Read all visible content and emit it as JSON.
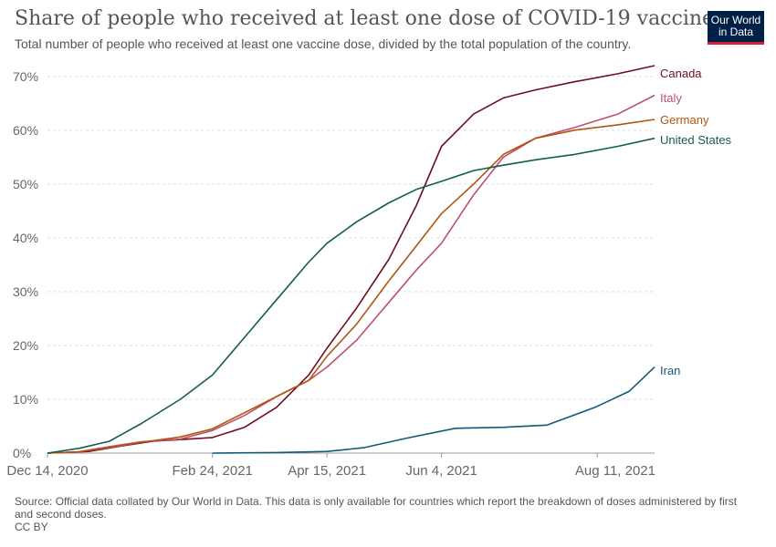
{
  "header": {
    "title": "Share of people who received at least one dose of COVID-19 vaccine",
    "subtitle": "Total number of people who received at least one vaccine dose, divided by the total population of the country."
  },
  "logo": {
    "line1": "Our World",
    "line2": "in Data"
  },
  "footer": {
    "source": "Source: Official data collated by Our World in Data. This data is only available for countries which report the breakdown of doses administered by first and second doses.",
    "license": "CC BY"
  },
  "colors": {
    "Canada": "#6d0f1f",
    "Italy": "#c0506c",
    "Germany": "#b0540f",
    "United States": "#145c52",
    "Iran": "#115a7a"
  },
  "chart_data": {
    "type": "line",
    "title": "Share of people who received at least one dose of COVID-19 vaccine",
    "subtitle": "Total number of people who received at least one vaccine dose, divided by the total population of the country.",
    "xlabel": "",
    "ylabel": "",
    "x_ticks": [
      "2020-12-14",
      "2021-02-24",
      "2021-04-15",
      "2021-06-04",
      "2021-08-11"
    ],
    "x_tick_labels": [
      "Dec 14, 2020",
      "Feb 24, 2021",
      "Apr 15, 2021",
      "Jun 4, 2021",
      "Aug 11, 2021"
    ],
    "xlim": [
      "2020-12-14",
      "2021-09-05"
    ],
    "y_ticks": [
      0,
      10,
      20,
      30,
      40,
      50,
      60,
      70
    ],
    "y_tick_labels": [
      "0%",
      "10%",
      "20%",
      "30%",
      "40%",
      "50%",
      "60%",
      "70%"
    ],
    "ylim": [
      0,
      72
    ],
    "grid": true,
    "legend": "end-of-line labels",
    "series": [
      {
        "name": "Canada",
        "points": [
          [
            "2020-12-14",
            0
          ],
          [
            "2021-01-01",
            0.3
          ],
          [
            "2021-01-15",
            1.3
          ],
          [
            "2021-01-29",
            2.2
          ],
          [
            "2021-02-10",
            2.5
          ],
          [
            "2021-02-24",
            2.9
          ],
          [
            "2021-03-10",
            4.8
          ],
          [
            "2021-03-24",
            8.5
          ],
          [
            "2021-04-07",
            14.5
          ],
          [
            "2021-04-15",
            19.5
          ],
          [
            "2021-04-28",
            27
          ],
          [
            "2021-05-12",
            36
          ],
          [
            "2021-05-24",
            46
          ],
          [
            "2021-06-04",
            57
          ],
          [
            "2021-06-18",
            63
          ],
          [
            "2021-07-01",
            66
          ],
          [
            "2021-07-15",
            67.5
          ],
          [
            "2021-08-01",
            69
          ],
          [
            "2021-08-20",
            70.5
          ],
          [
            "2021-09-05",
            72
          ]
        ]
      },
      {
        "name": "Italy",
        "points": [
          [
            "2020-12-14",
            0
          ],
          [
            "2020-12-27",
            0.2
          ],
          [
            "2021-01-10",
            1.2
          ],
          [
            "2021-01-24",
            2.1
          ],
          [
            "2021-02-10",
            2.6
          ],
          [
            "2021-02-24",
            4.2
          ],
          [
            "2021-03-10",
            7
          ],
          [
            "2021-03-24",
            10.5
          ],
          [
            "2021-04-07",
            13.5
          ],
          [
            "2021-04-15",
            16
          ],
          [
            "2021-04-28",
            21
          ],
          [
            "2021-05-12",
            28
          ],
          [
            "2021-05-24",
            34
          ],
          [
            "2021-06-04",
            39
          ],
          [
            "2021-06-18",
            48
          ],
          [
            "2021-07-01",
            55
          ],
          [
            "2021-07-15",
            58.5
          ],
          [
            "2021-08-01",
            60.5
          ],
          [
            "2021-08-20",
            63
          ],
          [
            "2021-09-05",
            66.5
          ]
        ]
      },
      {
        "name": "Germany",
        "points": [
          [
            "2020-12-14",
            0
          ],
          [
            "2020-12-27",
            0.2
          ],
          [
            "2021-01-10",
            1
          ],
          [
            "2021-01-24",
            2
          ],
          [
            "2021-02-10",
            3
          ],
          [
            "2021-02-24",
            4.5
          ],
          [
            "2021-03-10",
            7.5
          ],
          [
            "2021-03-24",
            10.5
          ],
          [
            "2021-04-07",
            13.5
          ],
          [
            "2021-04-15",
            18
          ],
          [
            "2021-04-28",
            24
          ],
          [
            "2021-05-12",
            32
          ],
          [
            "2021-05-24",
            38.5
          ],
          [
            "2021-06-04",
            44.5
          ],
          [
            "2021-06-18",
            50
          ],
          [
            "2021-07-01",
            55.5
          ],
          [
            "2021-07-15",
            58.5
          ],
          [
            "2021-08-01",
            60
          ],
          [
            "2021-08-20",
            61
          ],
          [
            "2021-09-05",
            62
          ]
        ]
      },
      {
        "name": "United States",
        "points": [
          [
            "2020-12-14",
            0
          ],
          [
            "2020-12-28",
            0.9
          ],
          [
            "2021-01-10",
            2.2
          ],
          [
            "2021-01-24",
            5.5
          ],
          [
            "2021-02-10",
            10
          ],
          [
            "2021-02-24",
            14.5
          ],
          [
            "2021-03-10",
            21.5
          ],
          [
            "2021-03-24",
            28.5
          ],
          [
            "2021-04-07",
            35.5
          ],
          [
            "2021-04-15",
            39
          ],
          [
            "2021-04-28",
            43
          ],
          [
            "2021-05-12",
            46.5
          ],
          [
            "2021-05-24",
            49
          ],
          [
            "2021-06-04",
            50.5
          ],
          [
            "2021-06-18",
            52.5
          ],
          [
            "2021-07-01",
            53.5
          ],
          [
            "2021-07-15",
            54.5
          ],
          [
            "2021-08-01",
            55.5
          ],
          [
            "2021-08-20",
            57
          ],
          [
            "2021-09-05",
            58.5
          ]
        ]
      },
      {
        "name": "Iran",
        "points": [
          [
            "2021-02-24",
            0
          ],
          [
            "2021-03-24",
            0.1
          ],
          [
            "2021-04-15",
            0.3
          ],
          [
            "2021-05-01",
            1
          ],
          [
            "2021-05-20",
            2.8
          ],
          [
            "2021-06-10",
            4.6
          ],
          [
            "2021-07-01",
            4.8
          ],
          [
            "2021-07-20",
            5.2
          ],
          [
            "2021-08-10",
            8.5
          ],
          [
            "2021-08-25",
            11.5
          ],
          [
            "2021-09-05",
            16
          ]
        ]
      }
    ]
  }
}
